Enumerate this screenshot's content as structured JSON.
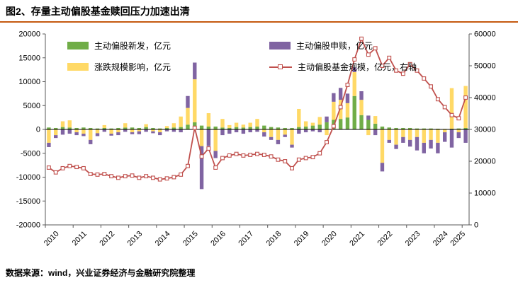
{
  "title": "图2、存量主动偏股基金赎回压力加速出清",
  "footer": "数据来源：wind，兴业证券经济与金融研究院整理",
  "colors": {
    "rule": "#C55A11",
    "new_issuance": "#70AD47",
    "price_impact": "#FFD966",
    "subscription_redemption": "#8064A2",
    "fund_scale_line": "#C0504D",
    "axis": "#595959"
  },
  "chart_data": {
    "type": "bar",
    "subtype": "stacked bars with line on secondary axis",
    "grid": false,
    "legend_position": "top",
    "x": [
      "2010Q1",
      "2010Q2",
      "2010Q3",
      "2010Q4",
      "2011Q1",
      "2011Q2",
      "2011Q3",
      "2011Q4",
      "2012Q1",
      "2012Q2",
      "2012Q3",
      "2012Q4",
      "2013Q1",
      "2013Q2",
      "2013Q3",
      "2013Q4",
      "2014Q1",
      "2014Q2",
      "2014Q3",
      "2014Q4",
      "2015Q1",
      "2015Q2",
      "2015Q3",
      "2015Q4",
      "2016Q1",
      "2016Q2",
      "2016Q3",
      "2016Q4",
      "2017Q1",
      "2017Q2",
      "2017Q3",
      "2017Q4",
      "2018Q1",
      "2018Q2",
      "2018Q3",
      "2018Q4",
      "2019Q1",
      "2019Q2",
      "2019Q3",
      "2019Q4",
      "2020Q1",
      "2020Q2",
      "2020Q3",
      "2020Q4",
      "2021Q1",
      "2021Q2",
      "2021Q3",
      "2021Q4",
      "2022Q1",
      "2022Q2",
      "2022Q3",
      "2022Q4",
      "2023Q1",
      "2023Q2",
      "2023Q3",
      "2023Q4",
      "2024Q1",
      "2024Q2",
      "2024Q3",
      "2024Q4",
      "2025Q1"
    ],
    "x_year_labels": [
      "2010",
      "2011",
      "2012",
      "2013",
      "2014",
      "2015",
      "2016",
      "2017",
      "2018",
      "2019",
      "2020",
      "2021",
      "2022",
      "2023",
      "2024",
      "2025"
    ],
    "left_axis": {
      "min": -20000,
      "max": 20000,
      "step": 5000
    },
    "right_axis": {
      "min": 0,
      "max": 60000,
      "step": 10000
    },
    "series": [
      {
        "name": "主动偏股新发，亿元",
        "type": "bar",
        "axis": "left",
        "color": "#70AD47",
        "values": [
          400,
          300,
          500,
          400,
          300,
          400,
          300,
          200,
          300,
          200,
          300,
          400,
          400,
          300,
          500,
          300,
          200,
          300,
          400,
          500,
          1000,
          1500,
          800,
          600,
          600,
          400,
          300,
          500,
          400,
          500,
          600,
          800,
          500,
          400,
          300,
          300,
          500,
          600,
          800,
          1000,
          1500,
          2000,
          2200,
          2500,
          7000,
          3000,
          2000,
          1200,
          600,
          400,
          300,
          300,
          300,
          200,
          200,
          200,
          150,
          100,
          150,
          200,
          300
        ]
      },
      {
        "name": "涨跌规模影响，亿元",
        "type": "bar",
        "axis": "left",
        "color": "#FFD966",
        "values": [
          -2800,
          -1200,
          1200,
          1500,
          -600,
          -900,
          -2200,
          -800,
          600,
          -900,
          -600,
          900,
          -600,
          -400,
          600,
          -400,
          -600,
          400,
          900,
          2200,
          3500,
          9000,
          -3500,
          2800,
          -4500,
          1800,
          600,
          900,
          600,
          900,
          1600,
          -600,
          -1600,
          -2200,
          -1100,
          -3200,
          3800,
          1100,
          600,
          1600,
          -1200,
          3800,
          4000,
          3000,
          5000,
          3200,
          -1200,
          1600,
          -7000,
          -2200,
          -3200,
          -1600,
          -2200,
          -1600,
          -2800,
          -2200,
          -2800,
          -600,
          8500,
          -600,
          8800
        ]
      },
      {
        "name": "主动偏股申赎，亿元",
        "type": "bar",
        "axis": "left",
        "color": "#8064A2",
        "values": [
          -900,
          -600,
          -1100,
          -900,
          -600,
          -500,
          -900,
          -600,
          -500,
          -400,
          -600,
          -500,
          -400,
          -600,
          -500,
          -400,
          -600,
          -400,
          -500,
          -600,
          2500,
          3500,
          -9000,
          -3500,
          -1500,
          -1200,
          -900,
          -600,
          -900,
          -600,
          -500,
          -900,
          -600,
          -900,
          -500,
          -600,
          -900,
          -600,
          -400,
          -600,
          1200,
          1800,
          2500,
          2000,
          1000,
          1800,
          900,
          -1200,
          -1800,
          -600,
          -900,
          -1200,
          -1400,
          -2800,
          -2200,
          -1800,
          -2200,
          -2000,
          -3800,
          -1200,
          -2800
        ]
      },
      {
        "name": "主动偏股基金规模，亿元，右轴",
        "type": "line",
        "axis": "right",
        "color": "#C0504D",
        "marker": "open-square",
        "values": [
          18000,
          16500,
          17800,
          18500,
          18200,
          17800,
          16000,
          15800,
          16000,
          15300,
          14800,
          15300,
          15500,
          14800,
          15300,
          14800,
          14300,
          14600,
          15000,
          15800,
          18500,
          30500,
          21500,
          24000,
          18000,
          21000,
          21800,
          22300,
          21800,
          22000,
          22300,
          22000,
          21500,
          20500,
          20000,
          17800,
          20500,
          21000,
          21300,
          22500,
          26000,
          31000,
          37000,
          44000,
          52000,
          58500,
          53500,
          55500,
          50000,
          52500,
          48500,
          47500,
          50500,
          48500,
          46000,
          43500,
          39500,
          37000,
          34500,
          33500,
          40000
        ]
      }
    ]
  }
}
